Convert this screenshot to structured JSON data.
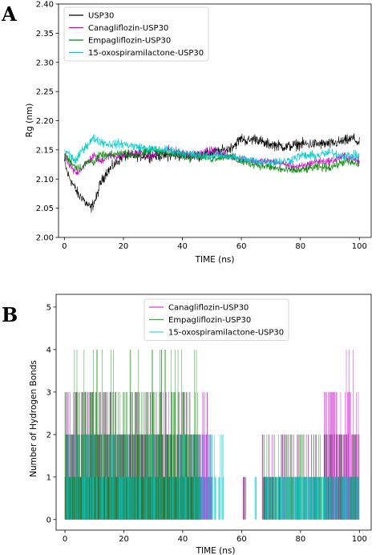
{
  "colors": {
    "usp30": "#000000",
    "canagliflozin": "#cc00cc",
    "empagliflozin": "#008800",
    "oxospiramilactone": "#00cccc"
  },
  "chart_data": [
    {
      "panel_label": "A",
      "type": "line",
      "xlabel": "TIME (ns)",
      "ylabel": "Rg (nm)",
      "xlim": [
        -2,
        104
      ],
      "ylim": [
        2.0,
        2.4
      ],
      "xticks": [
        "0",
        "20",
        "40",
        "60",
        "80",
        "100"
      ],
      "yticks": [
        "2.00",
        "2.05",
        "2.10",
        "2.15",
        "2.20",
        "2.25",
        "2.30",
        "2.35",
        "2.40"
      ],
      "legend_position": "upper-left",
      "grid": false,
      "series": [
        {
          "name": "USP30",
          "color": "#000000",
          "x": [
            0,
            1,
            2,
            3,
            4,
            5,
            6,
            7,
            8,
            9,
            10,
            11,
            12,
            14,
            16,
            18,
            20,
            25,
            30,
            35,
            40,
            45,
            50,
            55,
            58,
            60,
            62,
            65,
            68,
            70,
            75,
            80,
            85,
            90,
            95,
            98,
            100
          ],
          "y": [
            2.13,
            2.11,
            2.1,
            2.09,
            2.08,
            2.07,
            2.07,
            2.06,
            2.055,
            2.05,
            2.06,
            2.07,
            2.09,
            2.11,
            2.12,
            2.13,
            2.14,
            2.14,
            2.14,
            2.14,
            2.14,
            2.14,
            2.145,
            2.15,
            2.16,
            2.17,
            2.165,
            2.17,
            2.16,
            2.16,
            2.155,
            2.16,
            2.16,
            2.16,
            2.165,
            2.17,
            2.16
          ]
        },
        {
          "name": "Canagliflozin-USP30",
          "color": "#cc00cc",
          "x": [
            0,
            2,
            4,
            6,
            8,
            10,
            12,
            15,
            20,
            25,
            30,
            35,
            40,
            45,
            50,
            55,
            60,
            65,
            70,
            75,
            80,
            85,
            90,
            95,
            100
          ],
          "y": [
            2.14,
            2.12,
            2.11,
            2.12,
            2.13,
            2.14,
            2.13,
            2.14,
            2.14,
            2.145,
            2.14,
            2.15,
            2.145,
            2.14,
            2.15,
            2.14,
            2.135,
            2.13,
            2.13,
            2.125,
            2.12,
            2.13,
            2.13,
            2.14,
            2.13
          ]
        },
        {
          "name": "Empagliflozin-USP30",
          "color": "#008800",
          "x": [
            0,
            2,
            4,
            6,
            8,
            10,
            12,
            15,
            20,
            25,
            30,
            35,
            40,
            45,
            50,
            55,
            60,
            65,
            70,
            75,
            80,
            85,
            90,
            95,
            100
          ],
          "y": [
            2.14,
            2.13,
            2.12,
            2.12,
            2.13,
            2.13,
            2.14,
            2.14,
            2.145,
            2.14,
            2.15,
            2.145,
            2.14,
            2.14,
            2.135,
            2.14,
            2.13,
            2.125,
            2.12,
            2.115,
            2.115,
            2.12,
            2.12,
            2.13,
            2.125
          ]
        },
        {
          "name": "15-oxospiramilactone-USP30",
          "color": "#00cccc",
          "x": [
            0,
            2,
            4,
            6,
            8,
            10,
            12,
            15,
            20,
            25,
            30,
            35,
            40,
            45,
            50,
            55,
            60,
            65,
            70,
            75,
            80,
            85,
            90,
            95,
            100
          ],
          "y": [
            2.15,
            2.14,
            2.13,
            2.15,
            2.16,
            2.17,
            2.165,
            2.16,
            2.16,
            2.155,
            2.15,
            2.15,
            2.145,
            2.14,
            2.14,
            2.14,
            2.135,
            2.13,
            2.13,
            2.13,
            2.14,
            2.14,
            2.145,
            2.14,
            2.14
          ]
        }
      ]
    },
    {
      "panel_label": "B",
      "type": "bar",
      "xlabel": "TIME (ns)",
      "ylabel": "Number of Hydrogen Bonds",
      "xlim": [
        -3,
        104
      ],
      "ylim": [
        -0.25,
        5.3
      ],
      "xticks": [
        "0",
        "20",
        "40",
        "60",
        "80",
        "100"
      ],
      "yticks": [
        "0",
        "1",
        "2",
        "3",
        "4",
        "5"
      ],
      "legend_position": "upper-center",
      "grid": false,
      "series": [
        {
          "name": "Canagliflozin-USP30",
          "color": "#cc00cc",
          "bands": [
            {
              "from": 0,
              "to": 50,
              "max_count": 3
            },
            {
              "from": 60.5,
              "to": 61.5,
              "max_count": 1
            },
            {
              "from": 67,
              "to": 87,
              "max_count": 2
            },
            {
              "from": 88,
              "to": 100,
              "max_count": 4
            }
          ]
        },
        {
          "name": "Empagliflozin-USP30",
          "color": "#008800",
          "bands": [
            {
              "from": 0,
              "to": 46,
              "max_count": 4
            },
            {
              "from": 61,
              "to": 61.5,
              "max_count": 1
            },
            {
              "from": 67,
              "to": 88,
              "max_count": 2
            },
            {
              "from": 88,
              "to": 100,
              "max_count": 2
            }
          ]
        },
        {
          "name": "15-oxospiramilactone-USP30",
          "color": "#00cccc",
          "bands": [
            {
              "from": 0,
              "to": 54,
              "max_count": 2
            },
            {
              "from": 64.5,
              "to": 65,
              "max_count": 1
            },
            {
              "from": 68,
              "to": 100,
              "max_count": 1
            }
          ]
        }
      ]
    }
  ]
}
